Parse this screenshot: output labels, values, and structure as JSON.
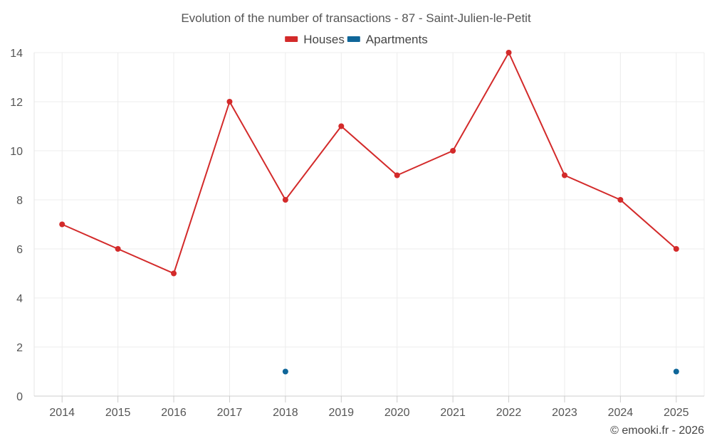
{
  "chart_data": {
    "type": "line",
    "title": "Evolution of the number of transactions - 87 - Saint-Julien-le-Petit",
    "categories": [
      "2014",
      "2015",
      "2016",
      "2017",
      "2018",
      "2019",
      "2020",
      "2021",
      "2022",
      "2023",
      "2024",
      "2025"
    ],
    "series": [
      {
        "name": "Houses",
        "color": "#d32a2a",
        "values": [
          7,
          6,
          5,
          12,
          8,
          11,
          9,
          10,
          14,
          9,
          8,
          6
        ]
      },
      {
        "name": "Apartments",
        "color": "#0f6699",
        "values": [
          null,
          null,
          null,
          null,
          1,
          null,
          null,
          null,
          null,
          null,
          null,
          1
        ]
      }
    ],
    "ylim": [
      0,
      14
    ],
    "yticks": [
      0,
      2,
      4,
      6,
      8,
      10,
      12,
      14
    ],
    "grid": true,
    "legend": "top-center"
  },
  "credit": "© emooki.fr - 2026"
}
